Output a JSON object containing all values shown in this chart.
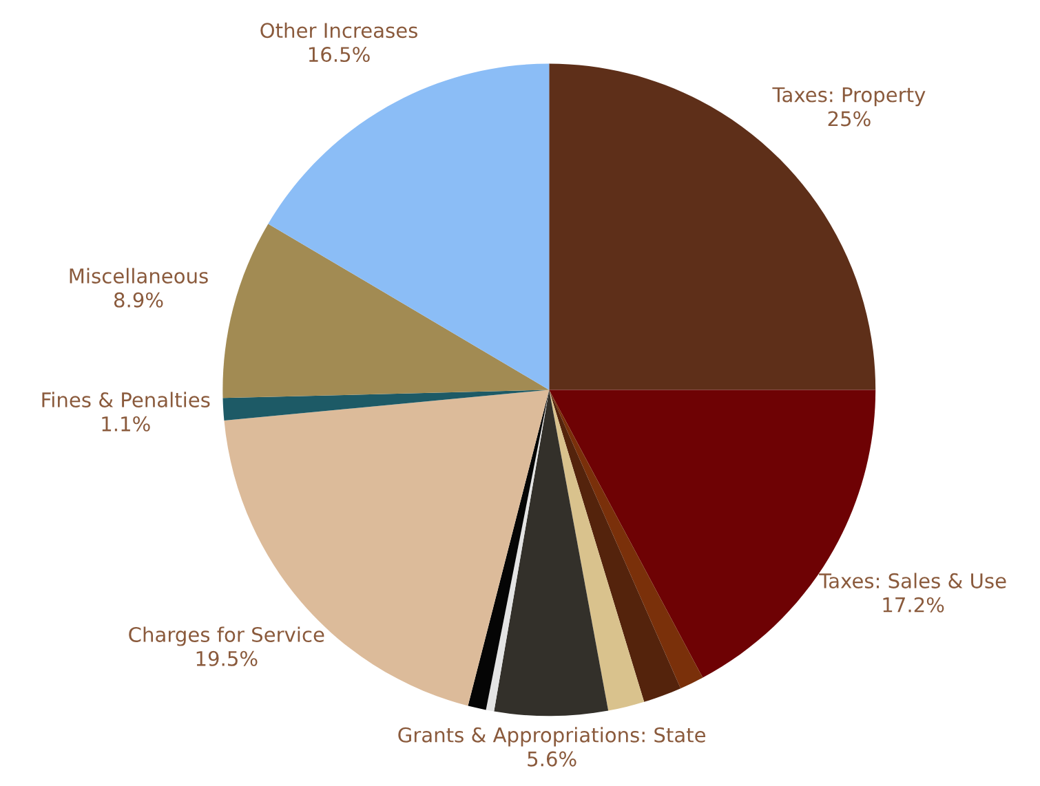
{
  "chart_data": {
    "type": "pie",
    "categories": [
      "Taxes: Property",
      "Taxes: Sales & Use",
      null,
      null,
      null,
      "Grants & Appropriations: State",
      null,
      null,
      "Charges for Service",
      "Fines & Penalties",
      "Miscellaneous",
      "Other Increases"
    ],
    "values": [
      25,
      17.2,
      1.2,
      1.9,
      1.8,
      5.6,
      0.4,
      0.9,
      19.5,
      1.1,
      8.9,
      16.5
    ],
    "value_labels": [
      "25%",
      "17.2%",
      null,
      null,
      null,
      "5.6%",
      null,
      null,
      "19.5%",
      "1.1%",
      "8.9%",
      "16.5%"
    ],
    "colors": [
      "#5e2f19",
      "#6e0204",
      "#7a300a",
      "#54230c",
      "#d9c28d",
      "#33302a",
      "#e4e4e4",
      "#050505",
      "#dcbb9a",
      "#1d5a66",
      "#a28b53",
      "#8bbdf6"
    ],
    "legend": false
  }
}
